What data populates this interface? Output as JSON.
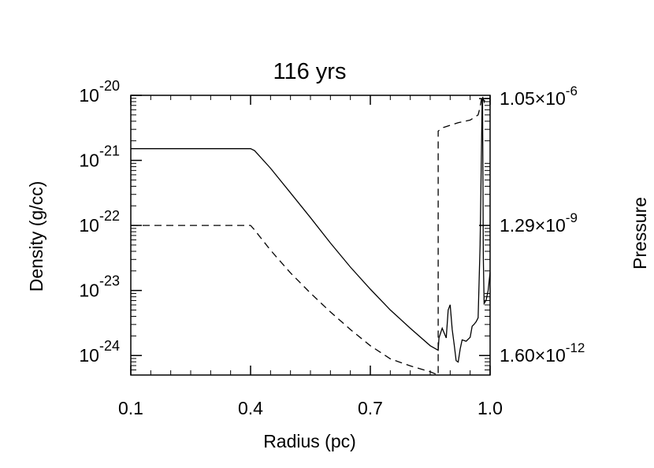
{
  "chart_data": {
    "type": "line",
    "title": "116 yrs",
    "xlabel": "Radius (pc)",
    "ylabel": "Density (g/cc)",
    "ylabel_right": "Pressure",
    "xlim": [
      0.1,
      1.0
    ],
    "ylim_log10": [
      -24.3,
      -20.0
    ],
    "y_scale": "log",
    "x_ticks": [
      {
        "value": 0.1,
        "label": "0.1"
      },
      {
        "value": 0.4,
        "label": "0.4"
      },
      {
        "value": 0.7,
        "label": "0.7"
      },
      {
        "value": 1.0,
        "label": "1.0"
      }
    ],
    "y_ticks": [
      {
        "exp": -20,
        "base": "10",
        "sup": "-20"
      },
      {
        "exp": -21,
        "base": "10",
        "sup": "-21"
      },
      {
        "exp": -22,
        "base": "10",
        "sup": "-22"
      },
      {
        "exp": -23,
        "base": "10",
        "sup": "-23"
      },
      {
        "exp": -24,
        "base": "10",
        "sup": "-24"
      }
    ],
    "y_right_ticks": [
      {
        "at_log10": -20.05,
        "mant": "1.05×10",
        "sup": "-6"
      },
      {
        "at_log10": -22.0,
        "mant": "1.29×10",
        "sup": "-9"
      },
      {
        "at_log10": -24.0,
        "mant": "1.60×10",
        "sup": "-12"
      }
    ],
    "series": [
      {
        "style": "solid",
        "x": [
          0.1,
          0.4,
          0.41,
          0.45,
          0.5,
          0.55,
          0.6,
          0.65,
          0.7,
          0.75,
          0.8,
          0.85,
          0.87,
          0.872,
          0.88,
          0.89,
          0.895,
          0.9,
          0.905,
          0.91,
          0.915,
          0.92,
          0.925,
          0.93,
          0.94,
          0.95,
          0.955,
          0.96,
          0.965,
          0.97,
          0.975,
          0.98,
          0.981,
          0.983,
          0.985,
          0.99,
          0.995,
          1.0
        ],
        "log10_y": [
          -20.82,
          -20.82,
          -20.85,
          -21.12,
          -21.5,
          -21.88,
          -22.27,
          -22.64,
          -22.98,
          -23.3,
          -23.58,
          -23.85,
          -23.92,
          -23.73,
          -23.58,
          -23.73,
          -23.3,
          -23.22,
          -23.6,
          -23.83,
          -24.08,
          -24.1,
          -23.9,
          -23.76,
          -23.78,
          -23.72,
          -23.55,
          -23.52,
          -23.48,
          -23.42,
          -22.3,
          -20.1,
          -20.05,
          -22.5,
          -23.2,
          -23.15,
          -23.0,
          -22.72
        ]
      },
      {
        "style": "dashed",
        "x": [
          0.1,
          0.4,
          0.41,
          0.45,
          0.5,
          0.55,
          0.6,
          0.65,
          0.7,
          0.75,
          0.8,
          0.85,
          0.87,
          0.87,
          0.88,
          0.9,
          0.92,
          0.95,
          0.97,
          0.975,
          0.98,
          0.985,
          0.99
        ],
        "log10_y": [
          -22.0,
          -22.0,
          -22.07,
          -22.38,
          -22.73,
          -23.04,
          -23.33,
          -23.6,
          -23.85,
          -24.05,
          -24.16,
          -24.25,
          -24.3,
          -20.55,
          -20.5,
          -20.46,
          -20.42,
          -20.38,
          -20.3,
          -20.18,
          -20.0,
          -20.1,
          -20.0
        ]
      }
    ]
  }
}
